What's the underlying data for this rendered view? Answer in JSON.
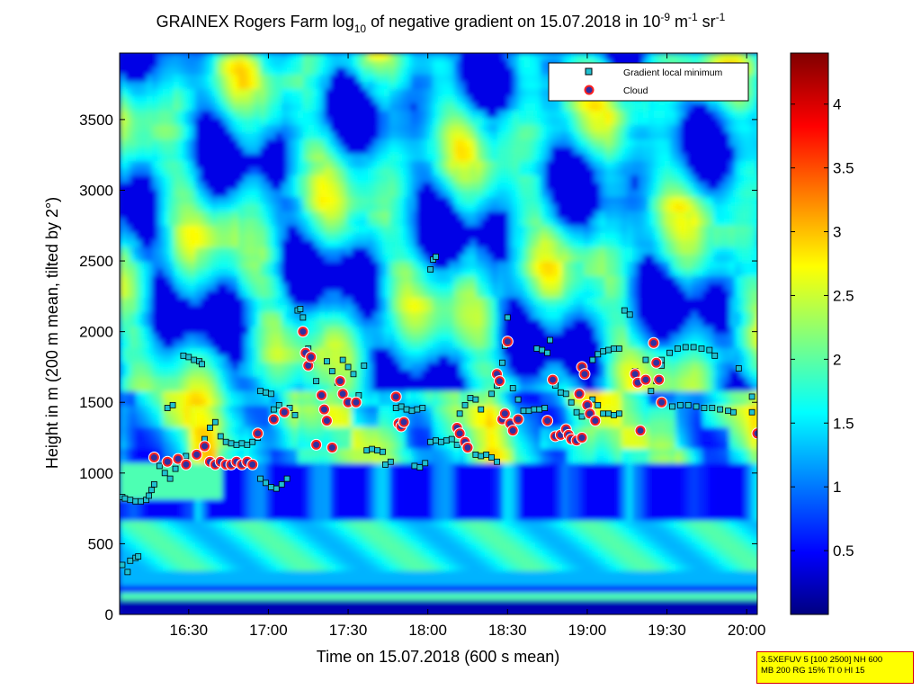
{
  "chart_data": {
    "type": "heatmap",
    "title_parts": {
      "prefix": "GRAINEX Rogers Farm log",
      "sub": "10",
      "middle": " of negative gradient on 15.07.2018 in 10",
      "exp1": "-9",
      "unit1": " m",
      "exp2": "-1",
      "unit2": " sr",
      "exp3": "-1"
    },
    "xlabel": "Time on 15.07.2018 (600 s mean)",
    "ylabel": "Height in m (200 m mean, tilted by 2°)",
    "x_range": [
      "16:04",
      "20:04"
    ],
    "ylim": [
      0,
      3970
    ],
    "x_ticks": [
      "16:30",
      "17:00",
      "17:30",
      "18:00",
      "18:30",
      "19:00",
      "19:30",
      "20:00"
    ],
    "y_ticks": [
      "0",
      "500",
      "1000",
      "1500",
      "2000",
      "2500",
      "3000",
      "3500"
    ],
    "colorbar": {
      "range": [
        0,
        4.4
      ],
      "ticks": [
        "0.5",
        "1",
        "1.5",
        "2",
        "2.5",
        "3",
        "3.5",
        "4"
      ],
      "colormap": "jet"
    },
    "legend": {
      "placement": "top-right",
      "entries": [
        {
          "label": "Gradient local minimum",
          "marker": "square",
          "color": "#20c0d0"
        },
        {
          "label": "Cloud",
          "marker": "circle",
          "color": "#e00000"
        }
      ]
    },
    "gradient_minimum": [
      {
        "time": "16:05",
        "height": 830
      },
      {
        "time": "16:06",
        "height": 820
      },
      {
        "time": "16:08",
        "height": 810
      },
      {
        "time": "16:10",
        "height": 800
      },
      {
        "time": "16:12",
        "height": 800
      },
      {
        "time": "16:14",
        "height": 810
      },
      {
        "time": "16:15",
        "height": 840
      },
      {
        "time": "16:16",
        "height": 880
      },
      {
        "time": "16:17",
        "height": 920
      },
      {
        "time": "16:05",
        "height": 350
      },
      {
        "time": "16:07",
        "height": 300
      },
      {
        "time": "16:08",
        "height": 380
      },
      {
        "time": "16:10",
        "height": 400
      },
      {
        "time": "16:11",
        "height": 410
      },
      {
        "time": "16:19",
        "height": 1050
      },
      {
        "time": "16:21",
        "height": 1000
      },
      {
        "time": "16:23",
        "height": 960
      },
      {
        "time": "16:25",
        "height": 1030
      },
      {
        "time": "16:27",
        "height": 1080
      },
      {
        "time": "16:29",
        "height": 1120
      },
      {
        "time": "16:22",
        "height": 1460
      },
      {
        "time": "16:24",
        "height": 1480
      },
      {
        "time": "16:28",
        "height": 1830
      },
      {
        "time": "16:30",
        "height": 1820
      },
      {
        "time": "16:32",
        "height": 1800
      },
      {
        "time": "16:34",
        "height": 1790
      },
      {
        "time": "16:35",
        "height": 1770
      },
      {
        "time": "16:36",
        "height": 1240
      },
      {
        "time": "16:38",
        "height": 1320
      },
      {
        "time": "16:40",
        "height": 1360
      },
      {
        "time": "16:42",
        "height": 1260
      },
      {
        "time": "16:44",
        "height": 1220
      },
      {
        "time": "16:46",
        "height": 1210
      },
      {
        "time": "16:48",
        "height": 1200
      },
      {
        "time": "16:50",
        "height": 1210
      },
      {
        "time": "16:52",
        "height": 1200
      },
      {
        "time": "16:54",
        "height": 1220
      },
      {
        "time": "16:56",
        "height": 1250
      },
      {
        "time": "16:57",
        "height": 1580
      },
      {
        "time": "16:59",
        "height": 1570
      },
      {
        "time": "17:01",
        "height": 1560
      },
      {
        "time": "16:57",
        "height": 960
      },
      {
        "time": "16:59",
        "height": 930
      },
      {
        "time": "17:01",
        "height": 900
      },
      {
        "time": "17:03",
        "height": 890
      },
      {
        "time": "17:05",
        "height": 920
      },
      {
        "time": "17:07",
        "height": 960
      },
      {
        "time": "17:02",
        "height": 1450
      },
      {
        "time": "17:04",
        "height": 1480
      },
      {
        "time": "17:06",
        "height": 1430
      },
      {
        "time": "17:08",
        "height": 1460
      },
      {
        "time": "17:10",
        "height": 1410
      },
      {
        "time": "17:11",
        "height": 2150
      },
      {
        "time": "17:12",
        "height": 2160
      },
      {
        "time": "17:13",
        "height": 2100
      },
      {
        "time": "17:15",
        "height": 1880
      },
      {
        "time": "17:16",
        "height": 1770
      },
      {
        "time": "17:18",
        "height": 1650
      },
      {
        "time": "17:20",
        "height": 1560
      },
      {
        "time": "17:22",
        "height": 1790
      },
      {
        "time": "17:24",
        "height": 1720
      },
      {
        "time": "17:26",
        "height": 1640
      },
      {
        "time": "17:28",
        "height": 1800
      },
      {
        "time": "17:30",
        "height": 1750
      },
      {
        "time": "17:32",
        "height": 1700
      },
      {
        "time": "17:34",
        "height": 1550
      },
      {
        "time": "17:36",
        "height": 1760
      },
      {
        "time": "17:37",
        "height": 1160
      },
      {
        "time": "17:39",
        "height": 1170
      },
      {
        "time": "17:41",
        "height": 1160
      },
      {
        "time": "17:43",
        "height": 1150
      },
      {
        "time": "17:44",
        "height": 1060
      },
      {
        "time": "17:46",
        "height": 1080
      },
      {
        "time": "17:48",
        "height": 1460
      },
      {
        "time": "17:50",
        "height": 1470
      },
      {
        "time": "17:52",
        "height": 1450
      },
      {
        "time": "17:54",
        "height": 1440
      },
      {
        "time": "17:56",
        "height": 1450
      },
      {
        "time": "17:58",
        "height": 1460
      },
      {
        "time": "17:55",
        "height": 1050
      },
      {
        "time": "17:57",
        "height": 1040
      },
      {
        "time": "17:59",
        "height": 1070
      },
      {
        "time": "18:01",
        "height": 2440
      },
      {
        "time": "18:02",
        "height": 2510
      },
      {
        "time": "18:03",
        "height": 2530
      },
      {
        "time": "18:01",
        "height": 1220
      },
      {
        "time": "18:03",
        "height": 1230
      },
      {
        "time": "18:05",
        "height": 1220
      },
      {
        "time": "18:07",
        "height": 1230
      },
      {
        "time": "18:09",
        "height": 1240
      },
      {
        "time": "18:11",
        "height": 1200
      },
      {
        "time": "18:12",
        "height": 1420
      },
      {
        "time": "18:14",
        "height": 1480
      },
      {
        "time": "18:16",
        "height": 1530
      },
      {
        "time": "18:18",
        "height": 1520
      },
      {
        "time": "18:20",
        "height": 1450
      },
      {
        "time": "18:18",
        "height": 1130
      },
      {
        "time": "18:20",
        "height": 1120
      },
      {
        "time": "18:22",
        "height": 1130
      },
      {
        "time": "18:24",
        "height": 1110
      },
      {
        "time": "18:26",
        "height": 1080
      },
      {
        "time": "18:24",
        "height": 1560
      },
      {
        "time": "18:26",
        "height": 1620
      },
      {
        "time": "18:28",
        "height": 1780
      },
      {
        "time": "18:29",
        "height": 1900
      },
      {
        "time": "18:30",
        "height": 2100
      },
      {
        "time": "18:32",
        "height": 1600
      },
      {
        "time": "18:34",
        "height": 1520
      },
      {
        "time": "18:36",
        "height": 1440
      },
      {
        "time": "18:38",
        "height": 1440
      },
      {
        "time": "18:40",
        "height": 1450
      },
      {
        "time": "18:42",
        "height": 1450
      },
      {
        "time": "18:44",
        "height": 1460
      },
      {
        "time": "18:41",
        "height": 1880
      },
      {
        "time": "18:43",
        "height": 1870
      },
      {
        "time": "18:45",
        "height": 1850
      },
      {
        "time": "18:46",
        "height": 1940
      },
      {
        "time": "18:48",
        "height": 1620
      },
      {
        "time": "18:50",
        "height": 1570
      },
      {
        "time": "18:52",
        "height": 1560
      },
      {
        "time": "18:54",
        "height": 1500
      },
      {
        "time": "18:56",
        "height": 1430
      },
      {
        "time": "18:58",
        "height": 1400
      },
      {
        "time": "19:00",
        "height": 1460
      },
      {
        "time": "19:02",
        "height": 1520
      },
      {
        "time": "19:04",
        "height": 1480
      },
      {
        "time": "19:06",
        "height": 1420
      },
      {
        "time": "19:08",
        "height": 1420
      },
      {
        "time": "19:10",
        "height": 1410
      },
      {
        "time": "19:12",
        "height": 1420
      },
      {
        "time": "19:02",
        "height": 1800
      },
      {
        "time": "19:04",
        "height": 1840
      },
      {
        "time": "19:06",
        "height": 1860
      },
      {
        "time": "19:08",
        "height": 1870
      },
      {
        "time": "19:10",
        "height": 1880
      },
      {
        "time": "19:12",
        "height": 1880
      },
      {
        "time": "19:14",
        "height": 2150
      },
      {
        "time": "19:16",
        "height": 2120
      },
      {
        "time": "19:18",
        "height": 1720
      },
      {
        "time": "19:20",
        "height": 1650
      },
      {
        "time": "19:22",
        "height": 1800
      },
      {
        "time": "19:24",
        "height": 1580
      },
      {
        "time": "19:26",
        "height": 1650
      },
      {
        "time": "19:28",
        "height": 1760
      },
      {
        "time": "19:28",
        "height": 1800
      },
      {
        "time": "19:31",
        "height": 1850
      },
      {
        "time": "19:34",
        "height": 1880
      },
      {
        "time": "19:37",
        "height": 1890
      },
      {
        "time": "19:40",
        "height": 1890
      },
      {
        "time": "19:43",
        "height": 1880
      },
      {
        "time": "19:46",
        "height": 1870
      },
      {
        "time": "19:48",
        "height": 1830
      },
      {
        "time": "19:32",
        "height": 1470
      },
      {
        "time": "19:35",
        "height": 1480
      },
      {
        "time": "19:38",
        "height": 1480
      },
      {
        "time": "19:41",
        "height": 1470
      },
      {
        "time": "19:44",
        "height": 1460
      },
      {
        "time": "19:47",
        "height": 1460
      },
      {
        "time": "19:50",
        "height": 1450
      },
      {
        "time": "19:53",
        "height": 1440
      },
      {
        "time": "19:55",
        "height": 1430
      },
      {
        "time": "19:57",
        "height": 1740
      },
      {
        "time": "20:02",
        "height": 1540
      },
      {
        "time": "20:02",
        "height": 1430
      }
    ],
    "cloud": [
      {
        "time": "16:17",
        "height": 1110
      },
      {
        "time": "16:22",
        "height": 1080
      },
      {
        "time": "16:26",
        "height": 1100
      },
      {
        "time": "16:29",
        "height": 1060
      },
      {
        "time": "16:33",
        "height": 1130
      },
      {
        "time": "16:36",
        "height": 1190
      },
      {
        "time": "16:38",
        "height": 1080
      },
      {
        "time": "16:40",
        "height": 1060
      },
      {
        "time": "16:42",
        "height": 1080
      },
      {
        "time": "16:44",
        "height": 1060
      },
      {
        "time": "16:46",
        "height": 1060
      },
      {
        "time": "16:48",
        "height": 1080
      },
      {
        "time": "16:50",
        "height": 1060
      },
      {
        "time": "16:52",
        "height": 1080
      },
      {
        "time": "16:54",
        "height": 1060
      },
      {
        "time": "16:56",
        "height": 1280
      },
      {
        "time": "17:02",
        "height": 1380
      },
      {
        "time": "17:06",
        "height": 1430
      },
      {
        "time": "17:13",
        "height": 2000
      },
      {
        "time": "17:14",
        "height": 1850
      },
      {
        "time": "17:15",
        "height": 1760
      },
      {
        "time": "17:16",
        "height": 1820
      },
      {
        "time": "17:18",
        "height": 1200
      },
      {
        "time": "17:20",
        "height": 1550
      },
      {
        "time": "17:21",
        "height": 1450
      },
      {
        "time": "17:22",
        "height": 1370
      },
      {
        "time": "17:24",
        "height": 1180
      },
      {
        "time": "17:27",
        "height": 1650
      },
      {
        "time": "17:28",
        "height": 1560
      },
      {
        "time": "17:30",
        "height": 1500
      },
      {
        "time": "17:33",
        "height": 1500
      },
      {
        "time": "17:48",
        "height": 1540
      },
      {
        "time": "17:49",
        "height": 1350
      },
      {
        "time": "17:50",
        "height": 1330
      },
      {
        "time": "17:51",
        "height": 1360
      },
      {
        "time": "18:11",
        "height": 1320
      },
      {
        "time": "18:12",
        "height": 1280
      },
      {
        "time": "18:14",
        "height": 1220
      },
      {
        "time": "18:15",
        "height": 1180
      },
      {
        "time": "18:26",
        "height": 1700
      },
      {
        "time": "18:27",
        "height": 1650
      },
      {
        "time": "18:28",
        "height": 1380
      },
      {
        "time": "18:29",
        "height": 1420
      },
      {
        "time": "18:30",
        "height": 1930
      },
      {
        "time": "18:31",
        "height": 1350
      },
      {
        "time": "18:32",
        "height": 1300
      },
      {
        "time": "18:34",
        "height": 1380
      },
      {
        "time": "18:45",
        "height": 1370
      },
      {
        "time": "18:47",
        "height": 1660
      },
      {
        "time": "18:48",
        "height": 1260
      },
      {
        "time": "18:50",
        "height": 1270
      },
      {
        "time": "18:52",
        "height": 1310
      },
      {
        "time": "18:53",
        "height": 1270
      },
      {
        "time": "18:54",
        "height": 1240
      },
      {
        "time": "18:56",
        "height": 1230
      },
      {
        "time": "18:58",
        "height": 1250
      },
      {
        "time": "18:57",
        "height": 1560
      },
      {
        "time": "18:58",
        "height": 1750
      },
      {
        "time": "18:59",
        "height": 1700
      },
      {
        "time": "19:00",
        "height": 1480
      },
      {
        "time": "19:01",
        "height": 1420
      },
      {
        "time": "19:03",
        "height": 1370
      },
      {
        "time": "19:18",
        "height": 1700
      },
      {
        "time": "19:19",
        "height": 1640
      },
      {
        "time": "19:20",
        "height": 1300
      },
      {
        "time": "19:22",
        "height": 1660
      },
      {
        "time": "19:25",
        "height": 1920
      },
      {
        "time": "19:26",
        "height": 1780
      },
      {
        "time": "19:27",
        "height": 1660
      },
      {
        "time": "19:28",
        "height": 1500
      },
      {
        "time": "20:04",
        "height": 1280
      }
    ]
  },
  "info_box": {
    "line1": "3.5XEFUV 5 [100 2500] NH 600",
    "line2": "MB 200 RG 15% TI 0 HI 15"
  },
  "colors": {
    "marker_edge": "#000000",
    "gradient_fill": "#20c0d0",
    "cloud_edge": "#ff2020",
    "cloud_fill": "#3030a0",
    "cloud_halo": "#ffffff",
    "info_bg": "#ffff00",
    "info_border": "#d40000"
  }
}
